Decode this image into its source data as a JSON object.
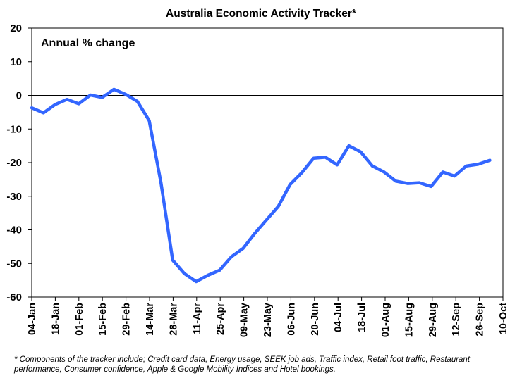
{
  "chart_data": {
    "type": "line",
    "title": "Australia Economic Activity Tracker*",
    "ylabel": "Annual % change",
    "xlabel": "",
    "ylim": [
      -60,
      20
    ],
    "yticks": [
      "20",
      "10",
      "0",
      "-10",
      "-20",
      "-30",
      "-40",
      "-50",
      "-60"
    ],
    "xtick_labels": [
      "04-Jan",
      "18-Jan",
      "01-Feb",
      "15-Feb",
      "29-Feb",
      "14-Mar",
      "28-Mar",
      "11-Apr",
      "25-Apr",
      "09-May",
      "23-May",
      "06-Jun",
      "20-Jun",
      "04-Jul",
      "18-Jul",
      "01-Aug",
      "15-Aug",
      "29-Aug",
      "12-Sep",
      "26-Sep",
      "10-Oct"
    ],
    "grid": false,
    "line_color": "#3366ff",
    "series": [
      {
        "x": [
          "2020-01-04",
          "2020-01-11",
          "2020-01-18",
          "2020-01-25",
          "2020-02-01",
          "2020-02-08",
          "2020-02-15",
          "2020-02-22",
          "2020-02-29",
          "2020-03-07",
          "2020-03-14",
          "2020-03-21",
          "2020-03-28",
          "2020-04-04",
          "2020-04-11",
          "2020-04-18",
          "2020-04-25",
          "2020-05-02",
          "2020-05-09",
          "2020-05-16",
          "2020-05-23",
          "2020-05-30",
          "2020-06-06",
          "2020-06-13",
          "2020-06-20",
          "2020-06-27",
          "2020-07-04",
          "2020-07-11",
          "2020-07-18",
          "2020-07-25",
          "2020-08-01",
          "2020-08-08",
          "2020-08-15",
          "2020-08-22",
          "2020-08-29",
          "2020-09-05",
          "2020-09-12",
          "2020-09-19",
          "2020-09-26",
          "2020-10-03"
        ],
        "values": [
          -3.7,
          -5.2,
          -2.7,
          -1.2,
          -2.5,
          0.1,
          -0.6,
          1.8,
          0.3,
          -1.8,
          -7.5,
          -26,
          -49,
          -53,
          -55.4,
          -53.5,
          -52,
          -48,
          -45.5,
          -41,
          -37,
          -33,
          -26.5,
          -23,
          -18.7,
          -18.4,
          -20.7,
          -15,
          -16.8,
          -21,
          -22.8,
          -25.5,
          -26.2,
          -26,
          -27.1,
          -22.8,
          -24,
          -21,
          -20.5,
          -19.3
        ]
      }
    ],
    "footnote_lines": [
      "* Components of the tracker include; Credit card data, Energy usage, SEEK job ads, Traffic index, Retail foot traffic, Restaurant",
      "performance, Consumer confidence, Apple & Google Mobility Indices and Hotel bookings."
    ]
  }
}
